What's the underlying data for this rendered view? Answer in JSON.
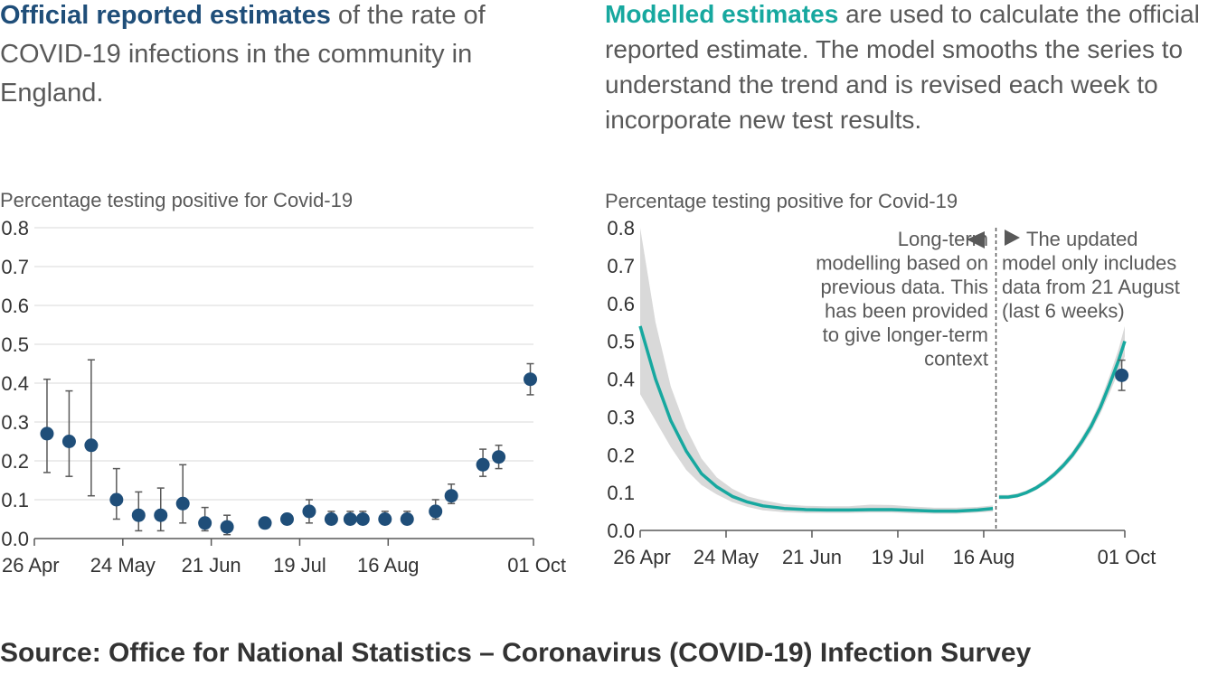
{
  "left_heading": {
    "highlight": "Official reported estimates",
    "rest": " of the rate of COVID-19 infections in the community in England."
  },
  "right_heading": {
    "highlight": "Modelled estimates",
    "rest": " are used to calculate the official reported estimate. The model smooths the series to understand the trend and is revised each week to incorporate new test results."
  },
  "source": "Source: Office for National Statistics – Coronavirus (COVID-19) Infection Survey",
  "colors": {
    "official": "#1f4e79",
    "model": "#17a89f",
    "band": "#d9d9d9",
    "grid": "#d9d9d9",
    "error": "#595959"
  },
  "chart_data": [
    {
      "type": "scatter",
      "ylabel": "Percentage testing positive for Covid-19",
      "ylim": [
        0,
        0.8
      ],
      "yticks": [
        "0.0",
        "0.1",
        "0.2",
        "0.3",
        "0.4",
        "0.5",
        "0.6",
        "0.7",
        "0.8"
      ],
      "xticks": [
        "26 Apr",
        "24 May",
        "21 Jun",
        "19 Jul",
        "16 Aug",
        "01 Oct"
      ],
      "xtick_dates": [
        "2021-04-26",
        "2021-05-24",
        "2021-06-21",
        "2021-07-19",
        "2021-08-16",
        "2021-10-01"
      ],
      "grid": true,
      "series": [
        {
          "x": [
            "2021-04-30",
            "2021-05-07",
            "2021-05-14",
            "2021-05-22",
            "2021-05-29",
            "2021-06-05",
            "2021-06-12",
            "2021-06-19",
            "2021-06-26",
            "2021-07-08",
            "2021-07-15",
            "2021-07-22",
            "2021-07-29",
            "2021-08-04",
            "2021-08-08",
            "2021-08-15",
            "2021-08-22",
            "2021-08-31",
            "2021-09-05",
            "2021-09-15",
            "2021-09-20",
            "2021-09-30"
          ],
          "y": [
            0.27,
            0.25,
            0.24,
            0.1,
            0.06,
            0.06,
            0.09,
            0.04,
            0.03,
            0.04,
            0.05,
            0.07,
            0.05,
            0.05,
            0.05,
            0.05,
            0.05,
            0.07,
            0.11,
            0.19,
            0.21,
            0.41
          ],
          "lower": [
            0.17,
            0.16,
            0.11,
            0.05,
            0.02,
            0.02,
            0.04,
            0.02,
            0.01,
            0.03,
            0.04,
            0.04,
            0.04,
            0.04,
            0.04,
            0.04,
            0.04,
            0.05,
            0.09,
            0.16,
            0.18,
            0.37
          ],
          "upper": [
            0.41,
            0.38,
            0.46,
            0.18,
            0.12,
            0.13,
            0.19,
            0.08,
            0.06,
            0.05,
            0.06,
            0.1,
            0.07,
            0.07,
            0.07,
            0.07,
            0.07,
            0.1,
            0.14,
            0.23,
            0.24,
            0.45
          ]
        }
      ]
    },
    {
      "type": "line",
      "ylabel": "Percentage testing positive for Covid-19",
      "ylim": [
        0,
        0.8
      ],
      "yticks": [
        "0.0",
        "0.1",
        "0.2",
        "0.3",
        "0.4",
        "0.5",
        "0.6",
        "0.7",
        "0.8"
      ],
      "xticks": [
        "26 Apr",
        "24 May",
        "21 Jun",
        "19 Jul",
        "16 Aug",
        "01 Oct"
      ],
      "xtick_dates": [
        "2021-04-26",
        "2021-05-24",
        "2021-06-21",
        "2021-07-19",
        "2021-08-16",
        "2021-10-01"
      ],
      "grid": false,
      "divider_date": "2021-08-20",
      "annotation_left": [
        "Long-term",
        "modelling based on",
        "previous data. This",
        "has been provided",
        "to give longer-term",
        "context"
      ],
      "annotation_right": [
        "The updated",
        "model only includes",
        "data from 21 August",
        "(last 6 weeks)"
      ],
      "series": [
        {
          "x": [
            "2021-04-26",
            "2021-05-01",
            "2021-05-06",
            "2021-05-11",
            "2021-05-16",
            "2021-05-21",
            "2021-05-26",
            "2021-05-31",
            "2021-06-05",
            "2021-06-12",
            "2021-06-19",
            "2021-06-26",
            "2021-07-03",
            "2021-07-10",
            "2021-07-17",
            "2021-07-24",
            "2021-07-31",
            "2021-08-07",
            "2021-08-14",
            "2021-08-19"
          ],
          "y": [
            0.54,
            0.4,
            0.29,
            0.21,
            0.15,
            0.115,
            0.09,
            0.075,
            0.065,
            0.058,
            0.055,
            0.054,
            0.054,
            0.055,
            0.055,
            0.053,
            0.051,
            0.051,
            0.054,
            0.058
          ],
          "lower": [
            0.36,
            0.29,
            0.22,
            0.16,
            0.12,
            0.095,
            0.075,
            0.062,
            0.053,
            0.048,
            0.046,
            0.046,
            0.046,
            0.047,
            0.047,
            0.045,
            0.044,
            0.044,
            0.047,
            0.05
          ],
          "upper": [
            0.8,
            0.55,
            0.38,
            0.27,
            0.19,
            0.14,
            0.11,
            0.09,
            0.08,
            0.069,
            0.065,
            0.064,
            0.064,
            0.068,
            0.067,
            0.063,
            0.06,
            0.06,
            0.062,
            0.066
          ]
        },
        {
          "x": [
            "2021-08-21",
            "2021-08-24",
            "2021-08-27",
            "2021-08-30",
            "2021-09-02",
            "2021-09-05",
            "2021-09-08",
            "2021-09-11",
            "2021-09-14",
            "2021-09-17",
            "2021-09-20",
            "2021-09-23",
            "2021-09-26",
            "2021-09-29",
            "2021-10-01"
          ],
          "y": [
            0.088,
            0.088,
            0.092,
            0.1,
            0.112,
            0.128,
            0.148,
            0.172,
            0.2,
            0.235,
            0.275,
            0.325,
            0.385,
            0.45,
            0.5
          ],
          "lower": [
            0.082,
            0.083,
            0.087,
            0.095,
            0.106,
            0.121,
            0.14,
            0.163,
            0.19,
            0.223,
            0.261,
            0.308,
            0.362,
            0.42,
            0.46
          ],
          "upper": [
            0.094,
            0.094,
            0.098,
            0.106,
            0.118,
            0.135,
            0.156,
            0.181,
            0.21,
            0.247,
            0.289,
            0.342,
            0.408,
            0.48,
            0.54
          ]
        }
      ],
      "points": [
        {
          "x": "2021-09-30",
          "y": 0.41,
          "lower": 0.37,
          "upper": 0.45
        }
      ]
    }
  ]
}
